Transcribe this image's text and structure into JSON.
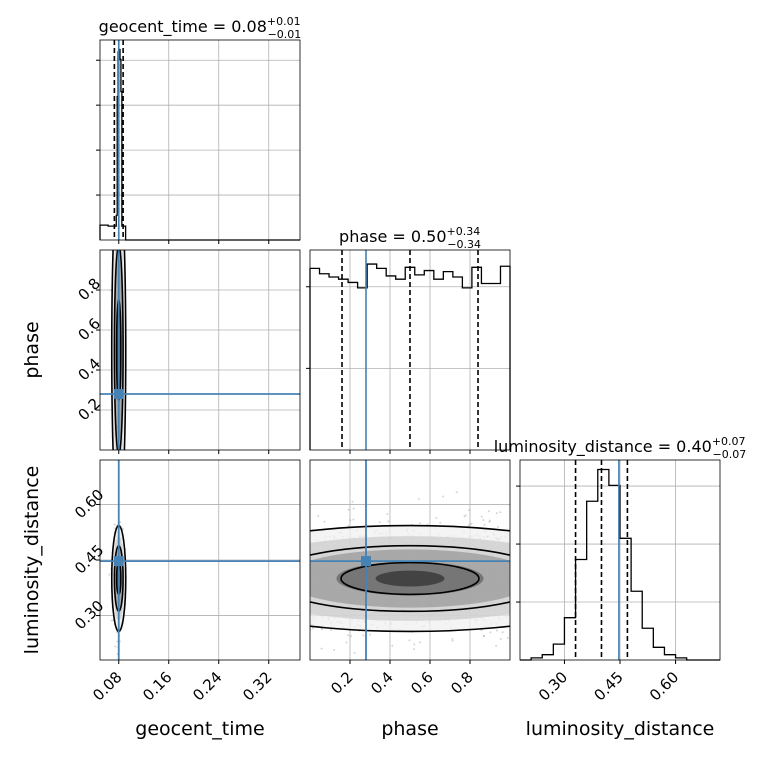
{
  "chart_data": {
    "type": "corner",
    "parameters": [
      "geocent_time",
      "phase",
      "luminosity_distance"
    ],
    "truths": {
      "geocent_time": 0.08,
      "phase": 0.28,
      "luminosity_distance": 0.447
    },
    "colors": {
      "truth": "#4682b4",
      "hist": "#000000",
      "grid": "#b0b0b0",
      "points": "#888888"
    },
    "grid": true,
    "panels": {
      "geocent_time": {
        "xlim": [
          0.05,
          0.37
        ],
        "title": {
          "main": "geocent_time = 0.08",
          "upper": "+0.01",
          "lower": "−0.01"
        },
        "quantiles": [
          0.073,
          0.08,
          0.087
        ],
        "hist_x": [
          0.05,
          0.063,
          0.076,
          0.0775,
          0.079,
          0.0805,
          0.082,
          0.0835,
          0.085,
          0.091,
          0.37
        ],
        "hist_y": [
          30,
          28,
          50,
          290,
          380,
          385,
          365,
          300,
          28,
          0
        ]
      },
      "phase": {
        "xlim": [
          0.0,
          1.0
        ],
        "title": {
          "main": "phase = 0.50",
          "upper": "+0.34",
          "lower": "−0.34"
        },
        "quantiles": [
          0.16,
          0.5,
          0.84
        ],
        "hist_y": [
          168,
          163,
          160,
          158,
          155,
          150,
          172,
          168,
          161,
          158,
          169,
          162,
          166,
          158,
          165,
          160,
          150,
          169,
          154,
          154,
          170
        ]
      },
      "luminosity_distance": {
        "xlim": [
          0.18,
          0.72
        ],
        "title": {
          "main": "luminosity_distance = 0.40",
          "upper": "+0.07",
          "lower": "−0.07"
        },
        "quantiles": [
          0.33,
          0.4,
          0.47
        ],
        "hist_x": [
          0.18,
          0.21,
          0.24,
          0.27,
          0.3,
          0.33,
          0.36,
          0.39,
          0.42,
          0.45,
          0.48,
          0.51,
          0.54,
          0.57,
          0.6,
          0.63,
          0.66,
          0.69,
          0.72
        ],
        "hist_y": [
          0,
          2,
          5,
          15,
          40,
          95,
          150,
          180,
          165,
          115,
          65,
          30,
          12,
          5,
          2,
          0,
          0,
          0
        ]
      }
    },
    "pairs": {
      "geocent_time|phase": {
        "center": [
          0.08,
          0.5
        ],
        "sd": [
          0.003,
          0.29
        ]
      },
      "geocent_time|luminosity_distance": {
        "center": [
          0.08,
          0.4
        ],
        "sd": [
          0.004,
          0.065
        ]
      },
      "phase|luminosity_distance": {
        "center": [
          0.5,
          0.4
        ],
        "sd": [
          0.29,
          0.065
        ]
      }
    },
    "x_ticks": {
      "geocent_time": [
        "0.08",
        "0.16",
        "0.24",
        "0.32"
      ],
      "phase": [
        "0.2",
        "0.4",
        "0.6",
        "0.8"
      ],
      "luminosity_distance": [
        "0.30",
        "0.45",
        "0.60"
      ]
    },
    "y_ticks": {
      "phase": [
        "0.2",
        "0.4",
        "0.6",
        "0.8"
      ],
      "luminosity_distance": [
        "0.30",
        "0.45",
        "0.60"
      ]
    }
  }
}
